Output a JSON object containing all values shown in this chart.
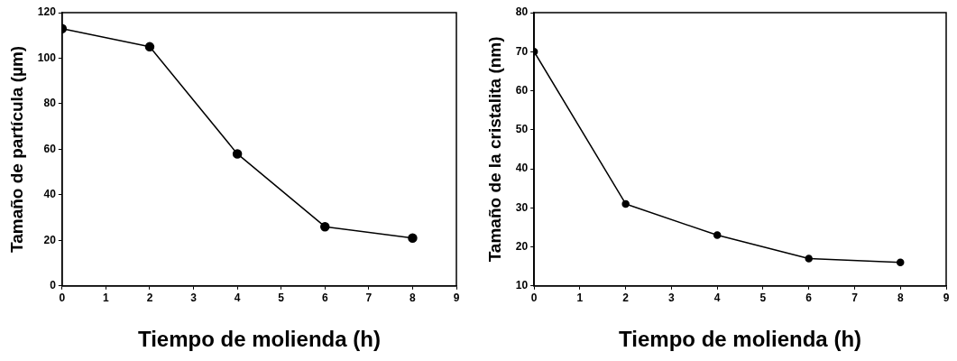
{
  "chart_data": [
    {
      "type": "line",
      "xlabel": "Tiempo de molienda (h)",
      "ylabel": "Tamaño de partícula (µm)",
      "x": [
        0,
        2,
        4,
        6,
        8
      ],
      "series": [
        {
          "color": "#000000",
          "values": [
            113,
            105,
            58,
            26,
            21
          ]
        }
      ],
      "xlim": [
        0,
        9
      ],
      "xticks": [
        0,
        1,
        2,
        3,
        4,
        5,
        6,
        7,
        8,
        9
      ],
      "ylim": [
        0,
        120
      ],
      "yticks": [
        0,
        20,
        40,
        60,
        80,
        100,
        120
      ],
      "grid": false,
      "legend": false,
      "marker": "circle",
      "line_style": "solid"
    },
    {
      "type": "line",
      "xlabel": "Tiempo de molienda (h)",
      "ylabel": "Tamaño de la cristalita (nm)",
      "x": [
        0,
        2,
        4,
        6,
        8
      ],
      "series": [
        {
          "color": "#000000",
          "values": [
            70,
            31,
            23,
            17,
            16
          ]
        }
      ],
      "xlim": [
        0,
        9
      ],
      "xticks": [
        0,
        1,
        2,
        3,
        4,
        5,
        6,
        7,
        8,
        9
      ],
      "ylim": [
        10,
        80
      ],
      "yticks": [
        10,
        20,
        30,
        40,
        50,
        60,
        70,
        80
      ],
      "grid": false,
      "legend": false,
      "marker": "circle",
      "line_style": "solid"
    }
  ]
}
